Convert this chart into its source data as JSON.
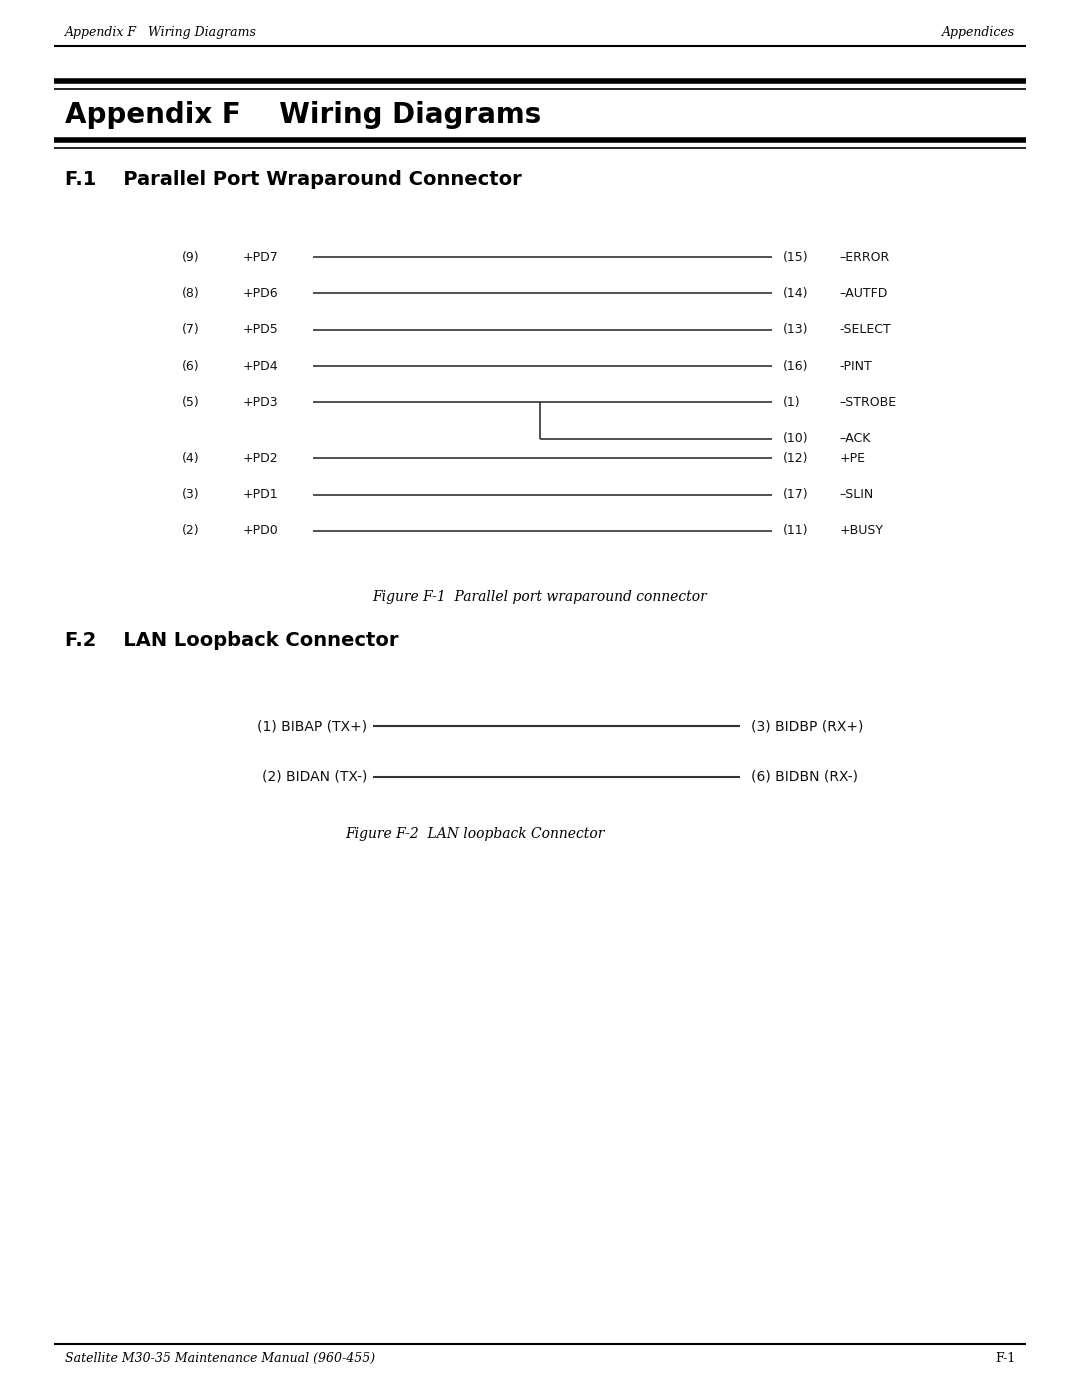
{
  "page_width": 10.8,
  "page_height": 13.97,
  "bg_color": "#ffffff",
  "header_left": "Appendix F   Wiring Diagrams",
  "header_right": "Appendices",
  "footer_left": "Satellite M30-35 Maintenance Manual (960-455)",
  "footer_right": "F-1",
  "section1_title": "Appendix F    Wiring Diagrams",
  "section2_title": "F.1    Parallel Port Wraparound Connector",
  "section3_title": "F.2    LAN Loopback Connector",
  "parallel_connections": [
    {
      "left_num": "9",
      "left_label": "+PD7",
      "right_num": "15",
      "right_label": "–ERROR",
      "type": "simple"
    },
    {
      "left_num": "8",
      "left_label": "+PD6",
      "right_num": "14",
      "right_label": "–AUTFD",
      "type": "simple"
    },
    {
      "left_num": "7",
      "left_label": "+PD5",
      "right_num": "13",
      "right_label": "-SELECT",
      "type": "simple"
    },
    {
      "left_num": "6",
      "left_label": "+PD4",
      "right_num": "16",
      "right_label": "-PINT",
      "type": "simple"
    },
    {
      "left_num": "5",
      "left_label": "+PD3",
      "right_num1": "1",
      "right_label1": "–STROBE",
      "right_num2": "10",
      "right_label2": "–ACK",
      "type": "branch"
    },
    {
      "left_num": "4",
      "left_label": "+PD2",
      "right_num": "12",
      "right_label": "+PE",
      "type": "simple"
    },
    {
      "left_num": "3",
      "left_label": "+PD1",
      "right_num": "17",
      "right_label": "–SLIN",
      "type": "simple"
    },
    {
      "left_num": "2",
      "left_label": "+PD0",
      "right_num": "11",
      "right_label": "+BUSY",
      "type": "simple"
    }
  ],
  "fig1_caption": "Figure F-1  Parallel port wraparound connector",
  "lan_connections": [
    {
      "left_num": "1",
      "left_label": "BIBAP (TX+)",
      "right_num": "3",
      "right_label": "BIDBP (RX+)"
    },
    {
      "left_num": "2",
      "left_label": "BIDAN (TX-)",
      "right_num": "6",
      "right_label": "BIDBN (RX-)"
    }
  ],
  "fig2_caption": "Figure F-2  LAN loopback Connector"
}
